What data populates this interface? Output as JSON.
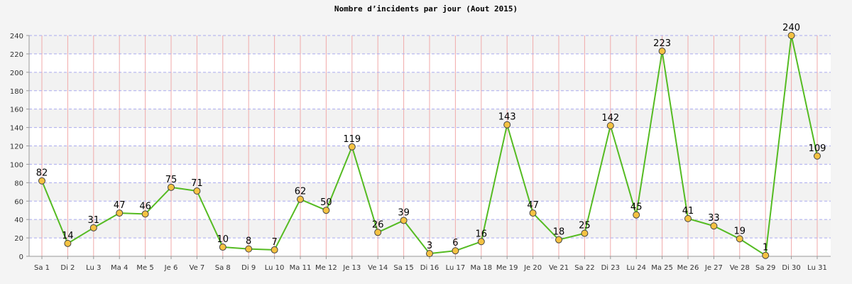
{
  "chart_data": {
    "type": "line",
    "title": "Nombre d’incidents par jour (Aout 2015)",
    "xlabel": "",
    "ylabel": "",
    "ylim": [
      0,
      240
    ],
    "yticks": [
      0,
      20,
      40,
      60,
      80,
      100,
      120,
      140,
      160,
      180,
      200,
      220,
      240
    ],
    "grid": true,
    "categories": [
      "Sa 1",
      "Di 2",
      "Lu 3",
      "Ma 4",
      "Me 5",
      "Je 6",
      "Ve 7",
      "Sa 8",
      "Di 9",
      "Lu 10",
      "Ma 11",
      "Me 12",
      "Je 13",
      "Ve 14",
      "Sa 15",
      "Di 16",
      "Lu 17",
      "Ma 18",
      "Me 19",
      "Je 20",
      "Ve 21",
      "Sa 22",
      "Di 23",
      "Lu 24",
      "Ma 25",
      "Me 26",
      "Je 27",
      "Ve 28",
      "Sa 29",
      "Di 30",
      "Lu 31"
    ],
    "series": [
      {
        "values": [
          82,
          14,
          31,
          47,
          46,
          75,
          71,
          10,
          8,
          7,
          62,
          50,
          119,
          26,
          39,
          3,
          6,
          16,
          143,
          47,
          18,
          25,
          142,
          45,
          223,
          41,
          33,
          19,
          1,
          240,
          109
        ],
        "line_color": "#55bb22",
        "marker_color": "#f5c242"
      }
    ]
  },
  "colors": {
    "background": "#f4f4f4",
    "plot_band_light": "#ffffff",
    "plot_band_dark": "#f2f2f2",
    "vertical_grid": "#f0aaaa",
    "horizontal_grid": "#aaaaee"
  }
}
